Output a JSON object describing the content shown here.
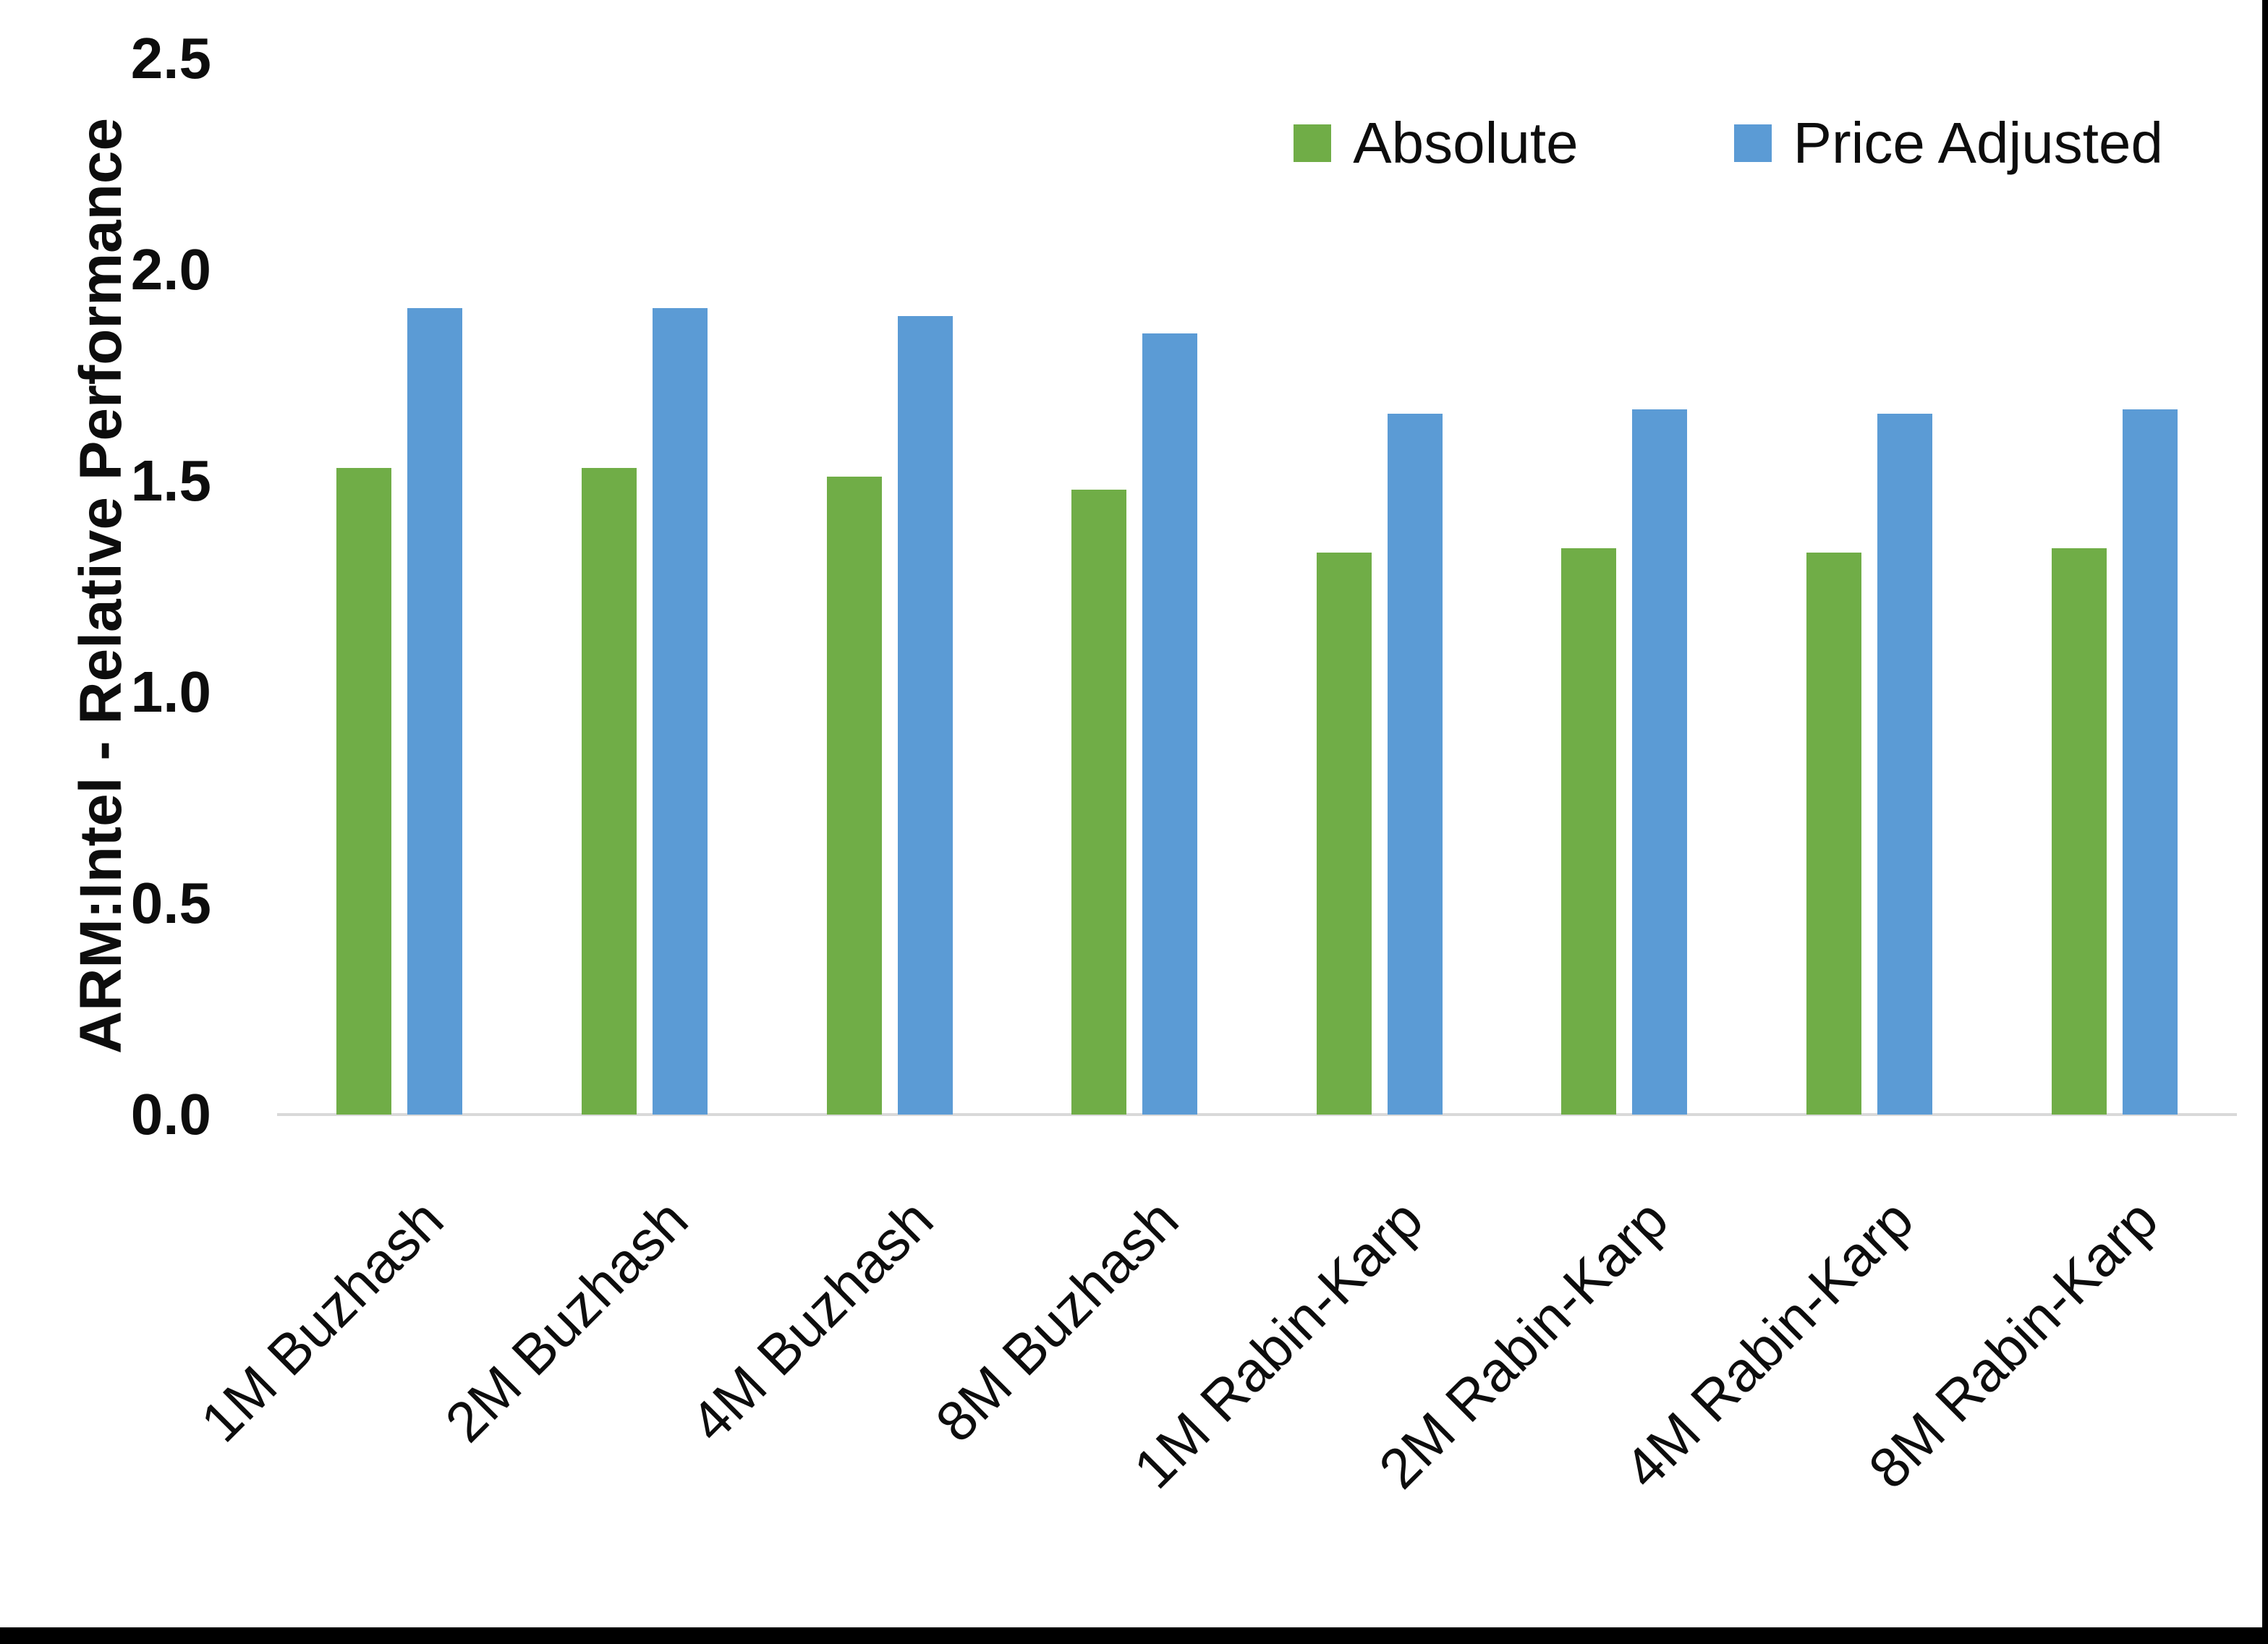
{
  "chart_data": {
    "type": "bar",
    "title": "",
    "ylabel": "ARM:Intel - Relative Performance",
    "xlabel": "",
    "ylim": [
      0,
      2.5
    ],
    "ytick_labels": [
      "0.0",
      "0.5",
      "1.0",
      "1.5",
      "2.0",
      "2.5"
    ],
    "grid": false,
    "legend_position": "top-right",
    "axis_line_color": "#d9d9d9",
    "categories": [
      "1M Buzhash",
      "2M Buzhash",
      "4M Buzhash",
      "8M Buzhash",
      "1M Rabin-Karp",
      "2M Rabin-Karp",
      "4M Rabin-Karp",
      "8M Rabin-Karp"
    ],
    "series": [
      {
        "name": "Absolute",
        "color": "#70ad47",
        "values": [
          1.53,
          1.53,
          1.51,
          1.48,
          1.33,
          1.34,
          1.33,
          1.34
        ]
      },
      {
        "name": "Price Adjusted",
        "color": "#5b9bd5",
        "values": [
          1.91,
          1.91,
          1.89,
          1.85,
          1.66,
          1.67,
          1.66,
          1.67
        ]
      }
    ]
  }
}
